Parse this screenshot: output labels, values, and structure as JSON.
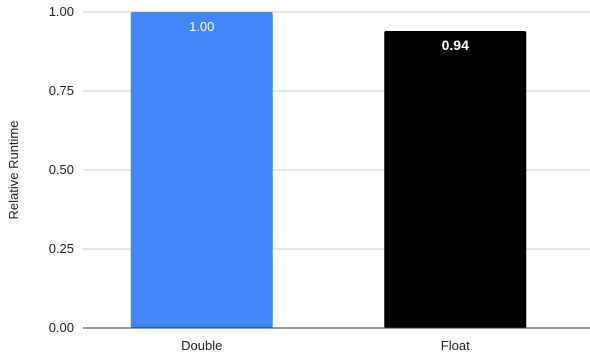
{
  "chart_data": {
    "type": "bar",
    "categories": [
      "Double",
      "Float"
    ],
    "values": [
      1.0,
      0.94
    ],
    "data_labels": [
      "1.00",
      "0.94"
    ],
    "bar_colors": [
      "#4285f4",
      "#000000"
    ],
    "title": "",
    "xlabel": "",
    "ylabel": "Relative Runtime",
    "ylim": [
      0,
      1.0
    ],
    "yticks": [
      0.0,
      0.25,
      0.5,
      0.75,
      1.0
    ],
    "ytick_labels": [
      "0.00",
      "0.25",
      "0.50",
      "0.75",
      "1.00"
    ],
    "grid": true,
    "legend": "none",
    "gridline_color": "#cccccc",
    "axis_color": "#333333"
  }
}
